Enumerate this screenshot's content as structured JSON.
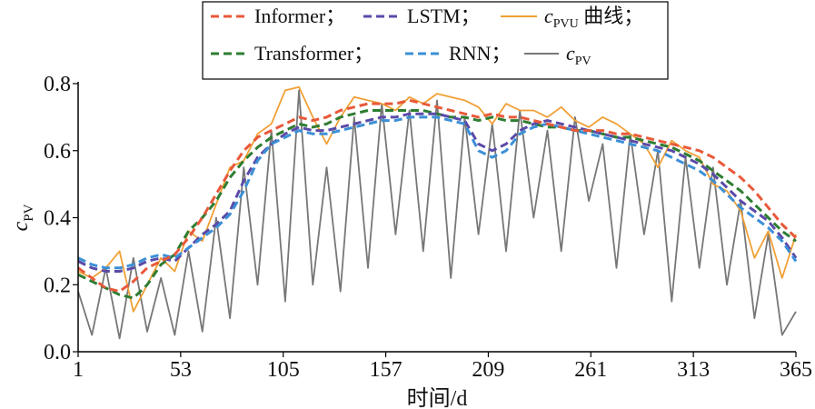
{
  "chart_data": {
    "type": "line",
    "xlabel": "时间/d",
    "ylabel": "c",
    "ylabel_sub": "PV",
    "xlim": [
      1,
      365
    ],
    "ylim": [
      0.0,
      0.8
    ],
    "xticks": [
      1,
      53,
      105,
      157,
      209,
      261,
      313,
      365
    ],
    "yticks": [
      "0.0",
      "0.2",
      "0.4",
      "0.6",
      "0.8"
    ],
    "legend_position": "top-center",
    "grid": false,
    "x": [
      1,
      8,
      15,
      22,
      29,
      36,
      43,
      50,
      57,
      64,
      71,
      78,
      85,
      92,
      99,
      106,
      113,
      120,
      127,
      134,
      141,
      148,
      155,
      162,
      169,
      176,
      183,
      190,
      197,
      204,
      211,
      218,
      225,
      232,
      239,
      246,
      253,
      260,
      267,
      274,
      281,
      288,
      295,
      302,
      309,
      316,
      323,
      330,
      337,
      344,
      351,
      358,
      365
    ],
    "series": [
      {
        "name": "Informer；",
        "style": "dashed",
        "color": "#e8593a",
        "values": [
          0.25,
          0.22,
          0.19,
          0.18,
          0.21,
          0.25,
          0.27,
          0.29,
          0.34,
          0.4,
          0.47,
          0.54,
          0.6,
          0.64,
          0.66,
          0.68,
          0.7,
          0.69,
          0.7,
          0.72,
          0.73,
          0.74,
          0.74,
          0.74,
          0.75,
          0.74,
          0.73,
          0.72,
          0.71,
          0.7,
          0.71,
          0.7,
          0.7,
          0.69,
          0.68,
          0.67,
          0.66,
          0.66,
          0.66,
          0.65,
          0.65,
          0.64,
          0.63,
          0.62,
          0.61,
          0.6,
          0.58,
          0.55,
          0.52,
          0.48,
          0.43,
          0.38,
          0.34
        ]
      },
      {
        "name": "LSTM；",
        "style": "dashed",
        "color": "#5a4aa8",
        "values": [
          0.27,
          0.25,
          0.24,
          0.24,
          0.25,
          0.27,
          0.28,
          0.27,
          0.31,
          0.35,
          0.38,
          0.42,
          0.51,
          0.58,
          0.62,
          0.65,
          0.67,
          0.66,
          0.66,
          0.67,
          0.68,
          0.69,
          0.7,
          0.7,
          0.71,
          0.71,
          0.71,
          0.7,
          0.69,
          0.62,
          0.6,
          0.62,
          0.66,
          0.68,
          0.69,
          0.68,
          0.67,
          0.66,
          0.65,
          0.64,
          0.63,
          0.62,
          0.61,
          0.6,
          0.58,
          0.56,
          0.53,
          0.49,
          0.45,
          0.42,
          0.39,
          0.34,
          0.28
        ]
      },
      {
        "name": "c",
        "name_sub": "PVU",
        "name_suffix": " 曲线；",
        "style": "solid",
        "color": "#f0a035",
        "values": [
          0.24,
          0.22,
          0.25,
          0.3,
          0.12,
          0.2,
          0.28,
          0.24,
          0.36,
          0.33,
          0.44,
          0.55,
          0.57,
          0.65,
          0.68,
          0.78,
          0.79,
          0.7,
          0.62,
          0.7,
          0.76,
          0.75,
          0.74,
          0.72,
          0.76,
          0.74,
          0.77,
          0.76,
          0.75,
          0.73,
          0.68,
          0.74,
          0.72,
          0.72,
          0.7,
          0.73,
          0.69,
          0.67,
          0.7,
          0.68,
          0.65,
          0.62,
          0.55,
          0.63,
          0.6,
          0.58,
          0.5,
          0.48,
          0.42,
          0.28,
          0.36,
          0.22,
          0.35
        ]
      },
      {
        "name": "Transformer；",
        "style": "dashed",
        "color": "#2e7d32",
        "values": [
          0.23,
          0.21,
          0.19,
          0.17,
          0.16,
          0.2,
          0.26,
          0.29,
          0.36,
          0.4,
          0.45,
          0.52,
          0.57,
          0.61,
          0.64,
          0.66,
          0.68,
          0.67,
          0.68,
          0.7,
          0.71,
          0.72,
          0.72,
          0.72,
          0.72,
          0.72,
          0.71,
          0.7,
          0.7,
          0.69,
          0.7,
          0.69,
          0.69,
          0.68,
          0.67,
          0.67,
          0.66,
          0.66,
          0.65,
          0.64,
          0.64,
          0.63,
          0.62,
          0.61,
          0.59,
          0.57,
          0.54,
          0.51,
          0.48,
          0.44,
          0.4,
          0.36,
          0.33
        ]
      },
      {
        "name": "RNN；",
        "style": "dashed",
        "color": "#3b8fd6",
        "values": [
          0.28,
          0.26,
          0.25,
          0.25,
          0.26,
          0.28,
          0.29,
          0.28,
          0.31,
          0.34,
          0.37,
          0.41,
          0.48,
          0.57,
          0.62,
          0.64,
          0.66,
          0.65,
          0.65,
          0.66,
          0.67,
          0.68,
          0.69,
          0.69,
          0.7,
          0.7,
          0.7,
          0.69,
          0.68,
          0.6,
          0.58,
          0.6,
          0.65,
          0.67,
          0.68,
          0.67,
          0.66,
          0.65,
          0.64,
          0.63,
          0.62,
          0.61,
          0.6,
          0.58,
          0.56,
          0.54,
          0.51,
          0.47,
          0.43,
          0.4,
          0.37,
          0.33,
          0.27
        ]
      },
      {
        "name": "c",
        "name_sub": "PV",
        "style": "solid",
        "color": "#777777",
        "values": [
          0.18,
          0.05,
          0.25,
          0.04,
          0.28,
          0.06,
          0.22,
          0.05,
          0.3,
          0.06,
          0.4,
          0.1,
          0.55,
          0.2,
          0.66,
          0.15,
          0.78,
          0.2,
          0.55,
          0.18,
          0.7,
          0.25,
          0.74,
          0.35,
          0.72,
          0.3,
          0.75,
          0.22,
          0.7,
          0.35,
          0.68,
          0.3,
          0.72,
          0.4,
          0.66,
          0.3,
          0.7,
          0.45,
          0.62,
          0.25,
          0.65,
          0.35,
          0.6,
          0.15,
          0.58,
          0.25,
          0.55,
          0.2,
          0.45,
          0.1,
          0.35,
          0.05,
          0.12
        ]
      }
    ]
  }
}
